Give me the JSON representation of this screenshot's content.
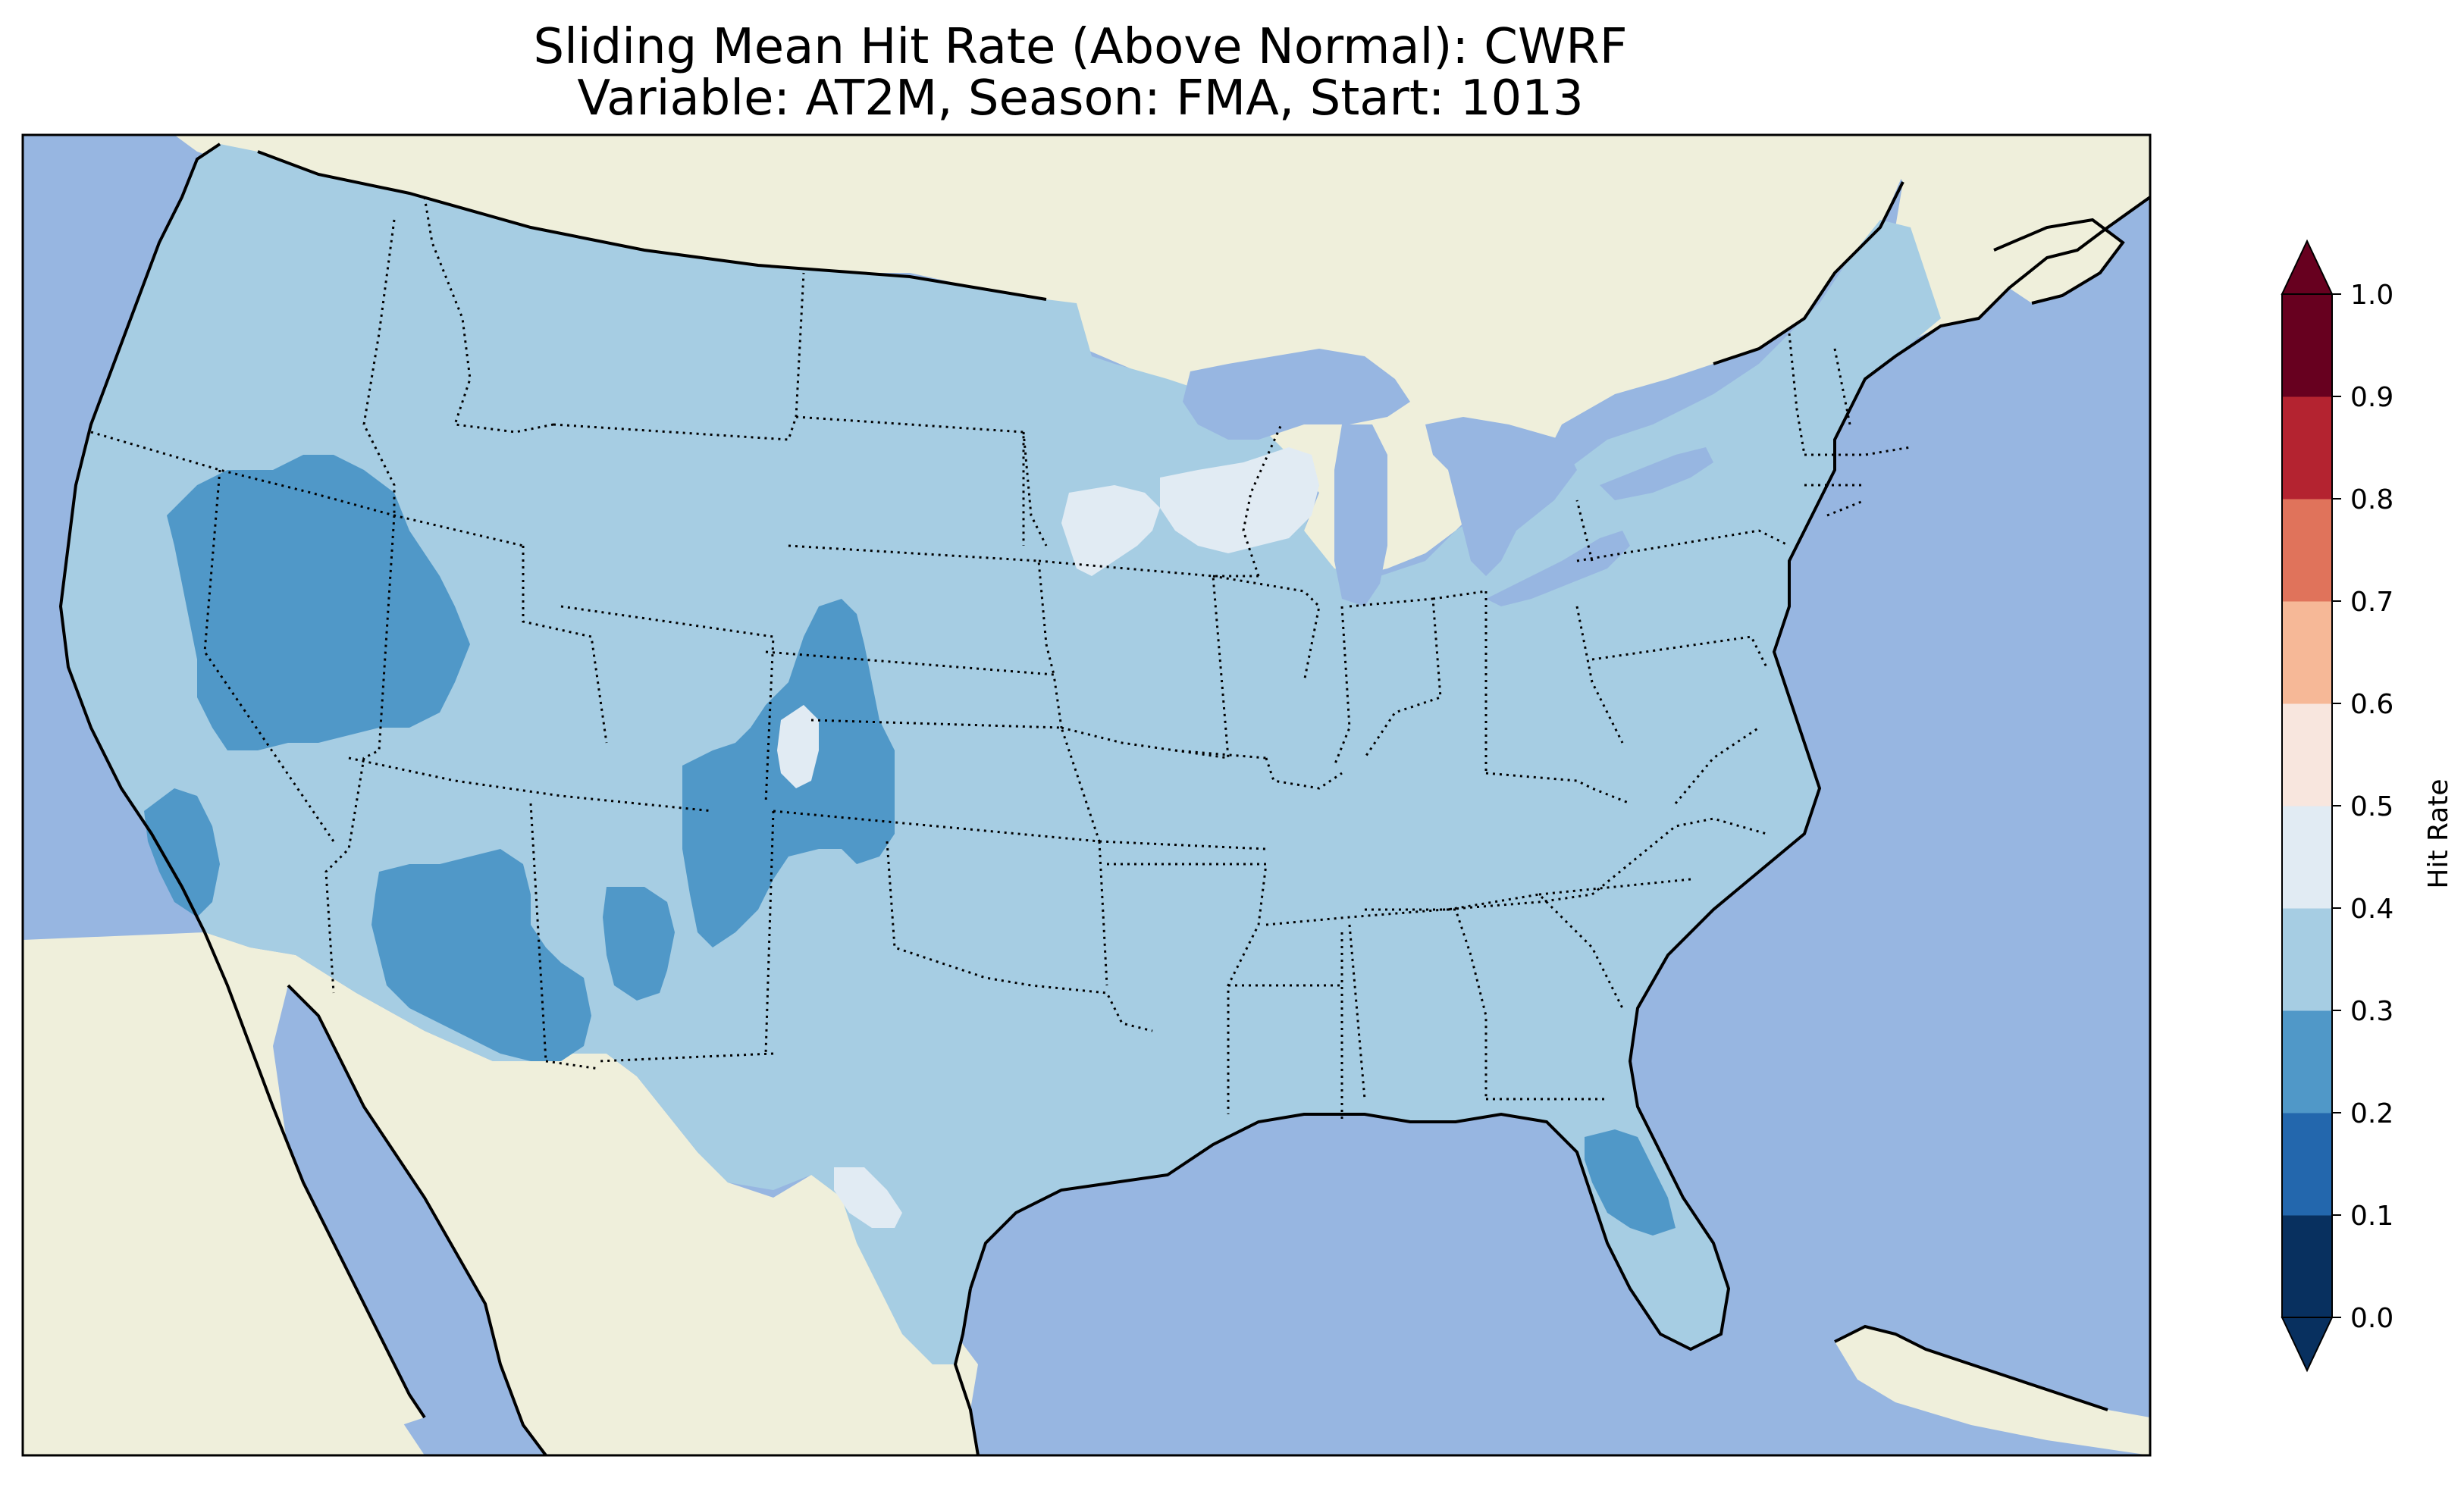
{
  "title": {
    "line1": "Sliding Mean Hit Rate (Above Normal): CWRF",
    "line2": "Variable: AT2M, Season: FMA, Start: 1013"
  },
  "colors": {
    "ocean": "#97b6e1",
    "land": "#efefdb",
    "hit_rate_0_2_0_3": "#5098c8",
    "hit_rate_0_3_0_4": "#a6cde3",
    "hit_rate_0_4_0_5": "#e1ebf3"
  },
  "colorbar": {
    "label": "Hit Rate",
    "ticks": [
      "0.0",
      "0.1",
      "0.2",
      "0.3",
      "0.4",
      "0.5",
      "0.6",
      "0.7",
      "0.8",
      "0.9",
      "1.0"
    ],
    "colors": [
      "#053061",
      "#2166ac",
      "#4393c3",
      "#92c5de",
      "#d1e5f0",
      "#f7f7f7",
      "#fddbc7",
      "#f4a582",
      "#d6604d",
      "#b2182b",
      "#67001f"
    ],
    "bin_colors": [
      "#08305f",
      "#2367ad",
      "#5098c8",
      "#a6cde3",
      "#e1ebf3",
      "#f8e6de",
      "#f6b897",
      "#e0735b",
      "#b42330",
      "#67001f"
    ],
    "extend": "both"
  }
}
